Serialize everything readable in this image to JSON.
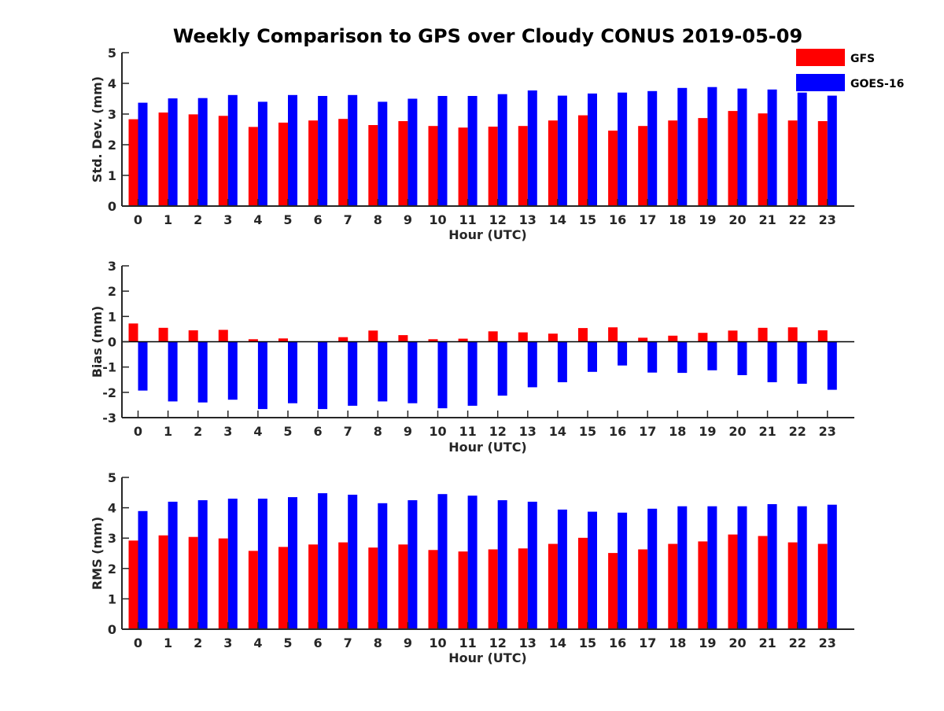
{
  "title": "Weekly Comparison to GPS over Cloudy CONUS 2019-05-09",
  "legend": {
    "placement": "top-right",
    "entries": [
      {
        "name": "GFS",
        "color": "#ff0000"
      },
      {
        "name": "GOES-16",
        "color": "#0000ff"
      }
    ]
  },
  "chart_data": [
    {
      "type": "bar",
      "ylabel": "Std. Dev. (mm)",
      "xlabel": "Hour (UTC)",
      "ylim": [
        0,
        5
      ],
      "yticks": [
        "0",
        "1",
        "2",
        "3",
        "4",
        "5"
      ],
      "categories": [
        "0",
        "1",
        "2",
        "3",
        "4",
        "5",
        "6",
        "7",
        "8",
        "9",
        "10",
        "11",
        "12",
        "13",
        "14",
        "15",
        "16",
        "17",
        "18",
        "19",
        "20",
        "21",
        "22",
        "23"
      ],
      "series": [
        {
          "name": "GFS",
          "color": "#ff0000",
          "values": [
            2.83,
            3.05,
            2.99,
            2.94,
            2.58,
            2.72,
            2.79,
            2.84,
            2.64,
            2.77,
            2.61,
            2.56,
            2.59,
            2.61,
            2.79,
            2.96,
            2.46,
            2.61,
            2.79,
            2.87,
            3.1,
            3.02,
            2.79,
            2.77
          ]
        },
        {
          "name": "GOES-16",
          "color": "#0000ff",
          "values": [
            3.37,
            3.51,
            3.52,
            3.62,
            3.4,
            3.62,
            3.59,
            3.62,
            3.4,
            3.5,
            3.59,
            3.59,
            3.65,
            3.77,
            3.6,
            3.67,
            3.7,
            3.75,
            3.85,
            3.88,
            3.83,
            3.8,
            3.7,
            3.6
          ]
        }
      ]
    },
    {
      "type": "bar",
      "ylabel": "Bias (mm)",
      "xlabel": "Hour (UTC)",
      "ylim": [
        -3,
        3
      ],
      "yticks": [
        "-3",
        "-2",
        "-1",
        "0",
        "1",
        "2",
        "3"
      ],
      "categories": [
        "0",
        "1",
        "2",
        "3",
        "4",
        "5",
        "6",
        "7",
        "8",
        "9",
        "10",
        "11",
        "12",
        "13",
        "14",
        "15",
        "16",
        "17",
        "18",
        "19",
        "20",
        "21",
        "22",
        "23"
      ],
      "series": [
        {
          "name": "GFS",
          "color": "#ff0000",
          "values": [
            0.72,
            0.55,
            0.45,
            0.47,
            0.1,
            0.13,
            0.0,
            0.18,
            0.44,
            0.26,
            0.1,
            0.12,
            0.41,
            0.37,
            0.32,
            0.54,
            0.57,
            0.16,
            0.24,
            0.35,
            0.44,
            0.55,
            0.57,
            0.45
          ]
        },
        {
          "name": "GOES-16",
          "color": "#0000ff",
          "values": [
            -1.93,
            -2.36,
            -2.4,
            -2.29,
            -2.66,
            -2.43,
            -2.66,
            -2.53,
            -2.36,
            -2.43,
            -2.63,
            -2.53,
            -2.13,
            -1.8,
            -1.6,
            -1.19,
            -0.94,
            -1.22,
            -1.23,
            -1.13,
            -1.32,
            -1.6,
            -1.66,
            -1.9
          ]
        }
      ]
    },
    {
      "type": "bar",
      "ylabel": "RMS (mm)",
      "xlabel": "Hour (UTC)",
      "ylim": [
        0,
        5
      ],
      "yticks": [
        "0",
        "1",
        "2",
        "3",
        "4",
        "5"
      ],
      "categories": [
        "0",
        "1",
        "2",
        "3",
        "4",
        "5",
        "6",
        "7",
        "8",
        "9",
        "10",
        "11",
        "12",
        "13",
        "14",
        "15",
        "16",
        "17",
        "18",
        "19",
        "20",
        "21",
        "22",
        "23"
      ],
      "series": [
        {
          "name": "GFS",
          "color": "#ff0000",
          "values": [
            2.92,
            3.09,
            3.04,
            2.99,
            2.58,
            2.71,
            2.79,
            2.86,
            2.69,
            2.79,
            2.61,
            2.56,
            2.63,
            2.66,
            2.81,
            3.01,
            2.51,
            2.63,
            2.81,
            2.89,
            3.12,
            3.07,
            2.86,
            2.81
          ]
        },
        {
          "name": "GOES-16",
          "color": "#0000ff",
          "values": [
            3.89,
            4.2,
            4.25,
            4.3,
            4.3,
            4.35,
            4.48,
            4.43,
            4.15,
            4.25,
            4.45,
            4.4,
            4.25,
            4.2,
            3.94,
            3.87,
            3.84,
            3.97,
            4.05,
            4.05,
            4.05,
            4.12,
            4.05,
            4.1
          ]
        }
      ]
    }
  ]
}
